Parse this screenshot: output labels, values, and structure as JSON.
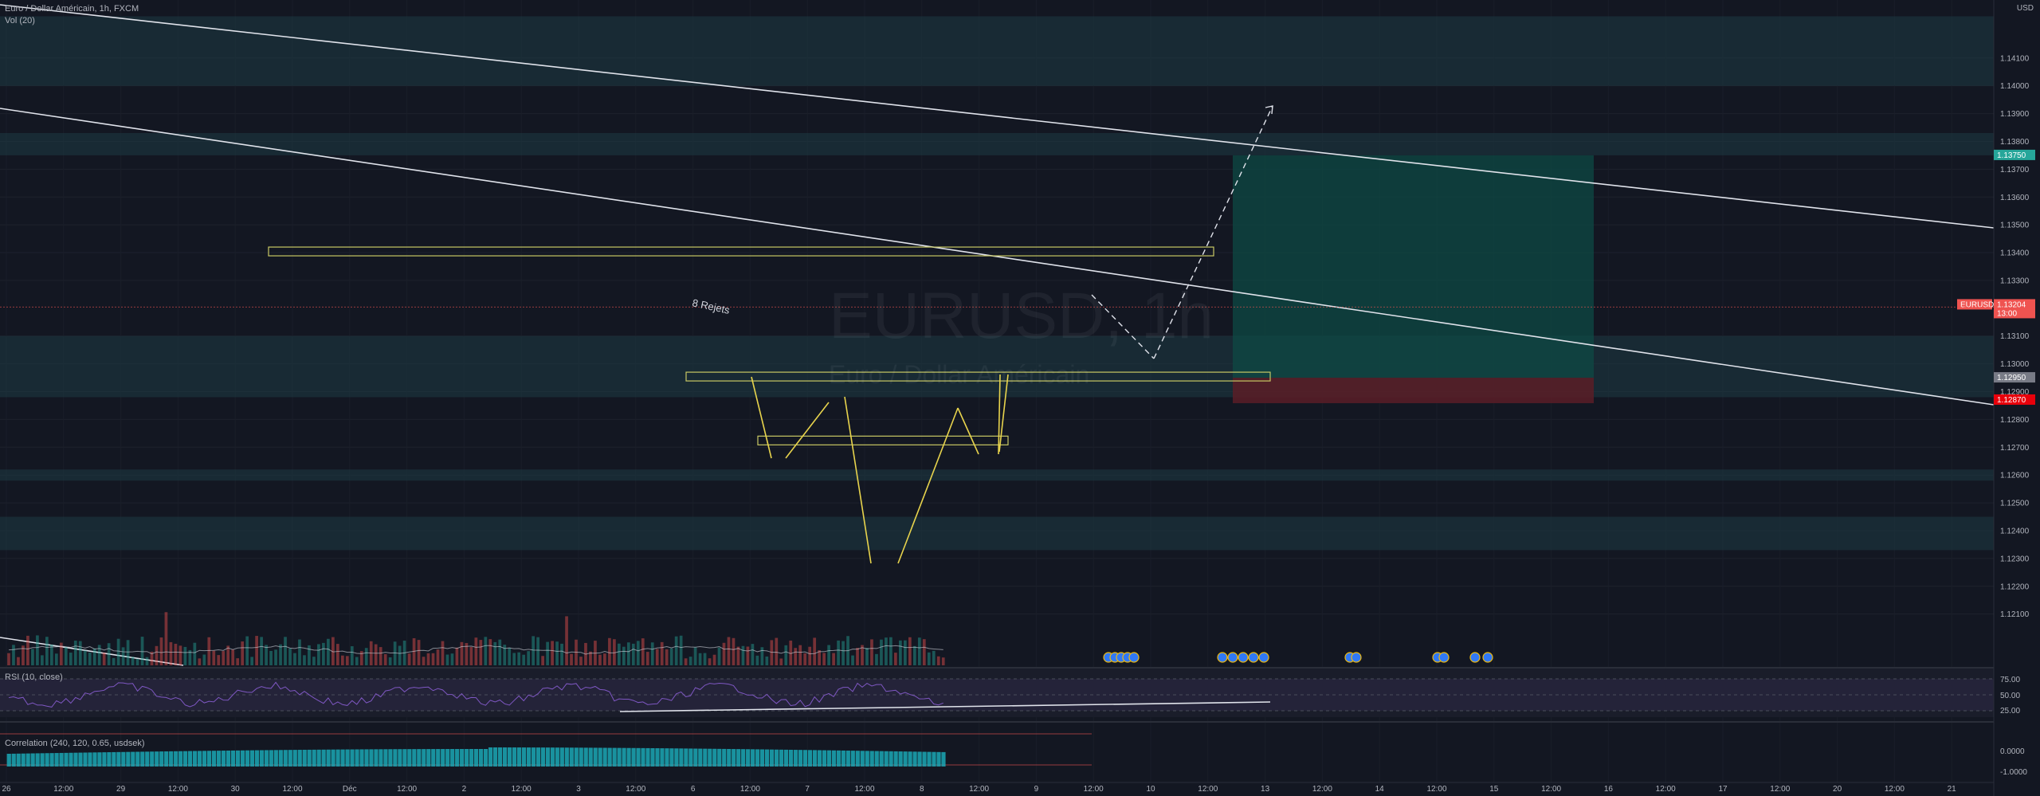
{
  "header": {
    "symbol_title": "Euro / Dollar Américain, 1h, FXCM",
    "volume_legend": "Vol (20)",
    "rsi_legend": "RSI (10, close)",
    "corr_legend": "Correlation (240, 120, 0.65, usdsek)",
    "currency": "USD"
  },
  "watermark": {
    "symbol": "EURUSD, 1h",
    "name": "Euro / Dollar Américain"
  },
  "colors": {
    "background": "#131722",
    "bull": "#26a69a",
    "bear": "#ef5350",
    "zone": "#1e3a44",
    "target": "#0e4a44",
    "stop": "#5a1d27",
    "rect": "#c8c864",
    "annot": "#e8d44d",
    "rsi": "#7e57c2",
    "corr": "#1ba8b5"
  },
  "chart_data": {
    "type": "candlestick",
    "ylim": [
      1.1195,
      1.143
    ],
    "y_ticks": [
      "1.14100",
      "1.14000",
      "1.13900",
      "1.13800",
      "1.13700",
      "1.13600",
      "1.13500",
      "1.13400",
      "1.13300",
      "1.13100",
      "1.13000",
      "1.12900",
      "1.12800",
      "1.12700",
      "1.12600",
      "1.12500",
      "1.12400",
      "1.12300",
      "1.12200",
      "1.12100"
    ],
    "x_ticks": [
      "26",
      "12:00",
      "29",
      "12:00",
      "30",
      "12:00",
      "Déc",
      "12:00",
      "2",
      "12:00",
      "3",
      "12:00",
      "6",
      "12:00",
      "7",
      "12:00",
      "8",
      "12:00",
      "9",
      "12:00",
      "10",
      "12:00",
      "13",
      "12:00",
      "14",
      "12:00",
      "15",
      "12:00",
      "16",
      "12:00",
      "17",
      "12:00",
      "20",
      "12:00",
      "21"
    ],
    "price_labels": [
      {
        "text": "1.13750",
        "color": "#26a69a"
      },
      {
        "text": "EURUSD",
        "color": "#ef5350"
      },
      {
        "text": "1.13204",
        "color": "#ef5350"
      },
      {
        "text": "13:00",
        "color": "#ef5350"
      },
      {
        "text": "1.12950",
        "color": "#787b86"
      },
      {
        "text": "1.12870",
        "color": "#e8000b"
      }
    ],
    "rsi_ticks": [
      "75.00",
      "50.00",
      "25.00"
    ],
    "corr_ticks": [
      "0.0000",
      "-1.0000"
    ],
    "zones": [
      [
        1.14,
        1.1425
      ],
      [
        1.1375,
        1.1383
      ],
      [
        1.1288,
        1.131
      ],
      [
        1.1258,
        1.1262
      ],
      [
        1.1233,
        1.1245
      ]
    ],
    "trade": {
      "entry": 1.1295,
      "target": 1.1375,
      "stop": 1.1287
    },
    "rectangles": [
      [
        1.1339,
        1.1342
      ],
      [
        1.1294,
        1.1297
      ],
      [
        1.1272,
        1.1274
      ]
    ],
    "annotation": "8 Rejets"
  }
}
